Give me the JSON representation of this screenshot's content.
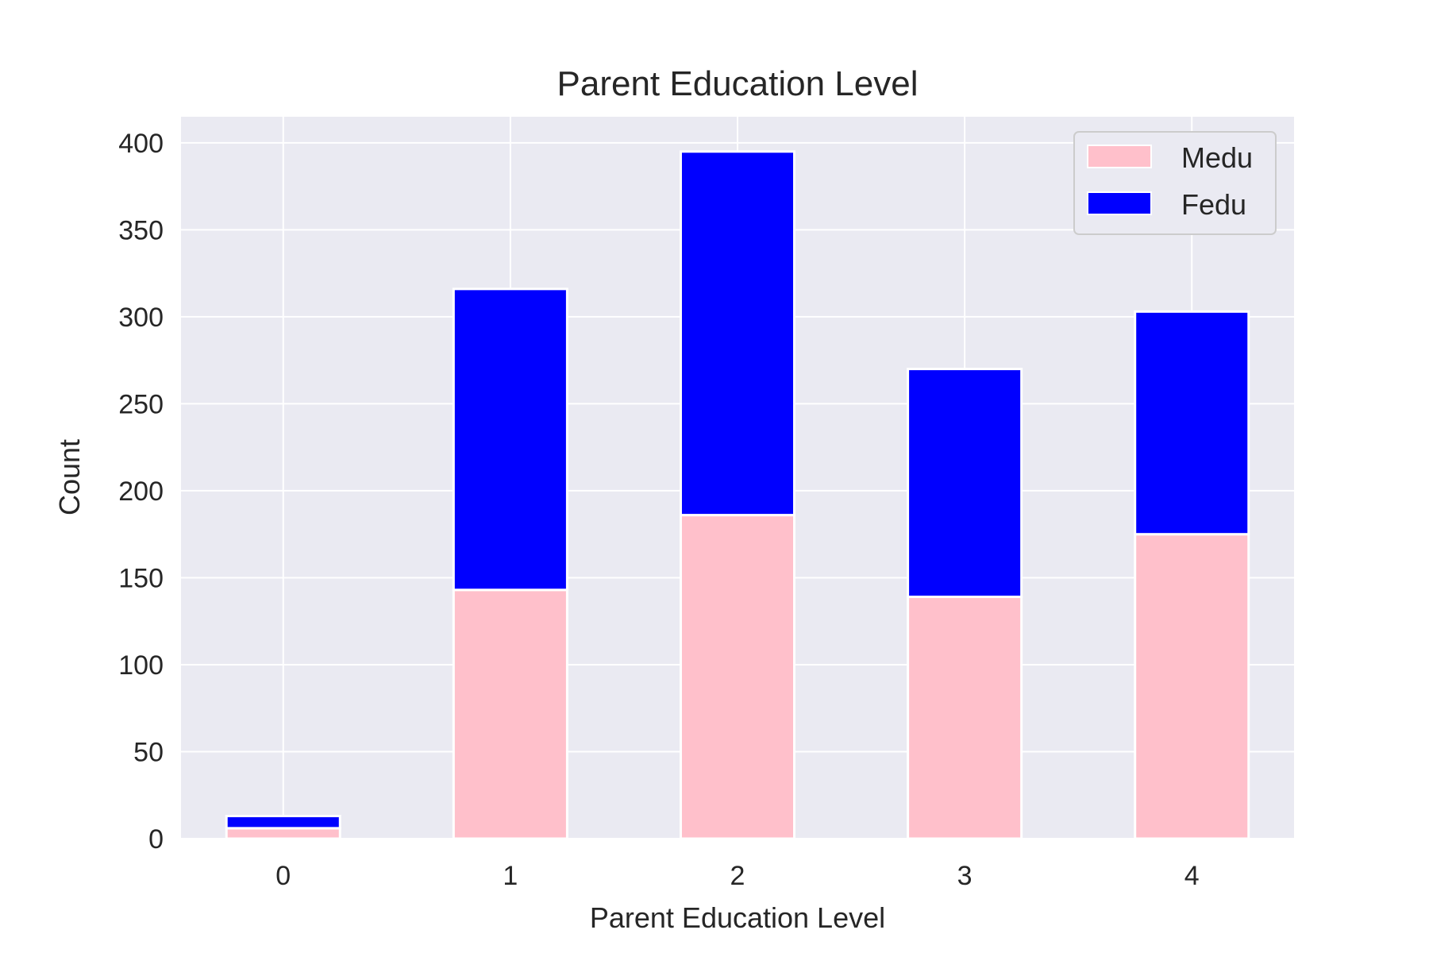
{
  "chart_data": {
    "type": "bar",
    "stacked": true,
    "title": "Parent Education Level",
    "xlabel": "Parent Education Level",
    "ylabel": "Count",
    "categories": [
      "0",
      "1",
      "2",
      "3",
      "4"
    ],
    "series": [
      {
        "name": "Medu",
        "values": [
          6,
          143,
          186,
          139,
          175
        ],
        "color": "#ffc0cb"
      },
      {
        "name": "Fedu",
        "values": [
          7,
          173,
          209,
          131,
          128
        ],
        "color": "#0000ff"
      }
    ],
    "ylim": [
      0,
      415
    ],
    "yticks": [
      0,
      50,
      100,
      150,
      200,
      250,
      300,
      350,
      400
    ],
    "grid": true,
    "legend_position": "top-right",
    "background": "#eaeaf2"
  }
}
